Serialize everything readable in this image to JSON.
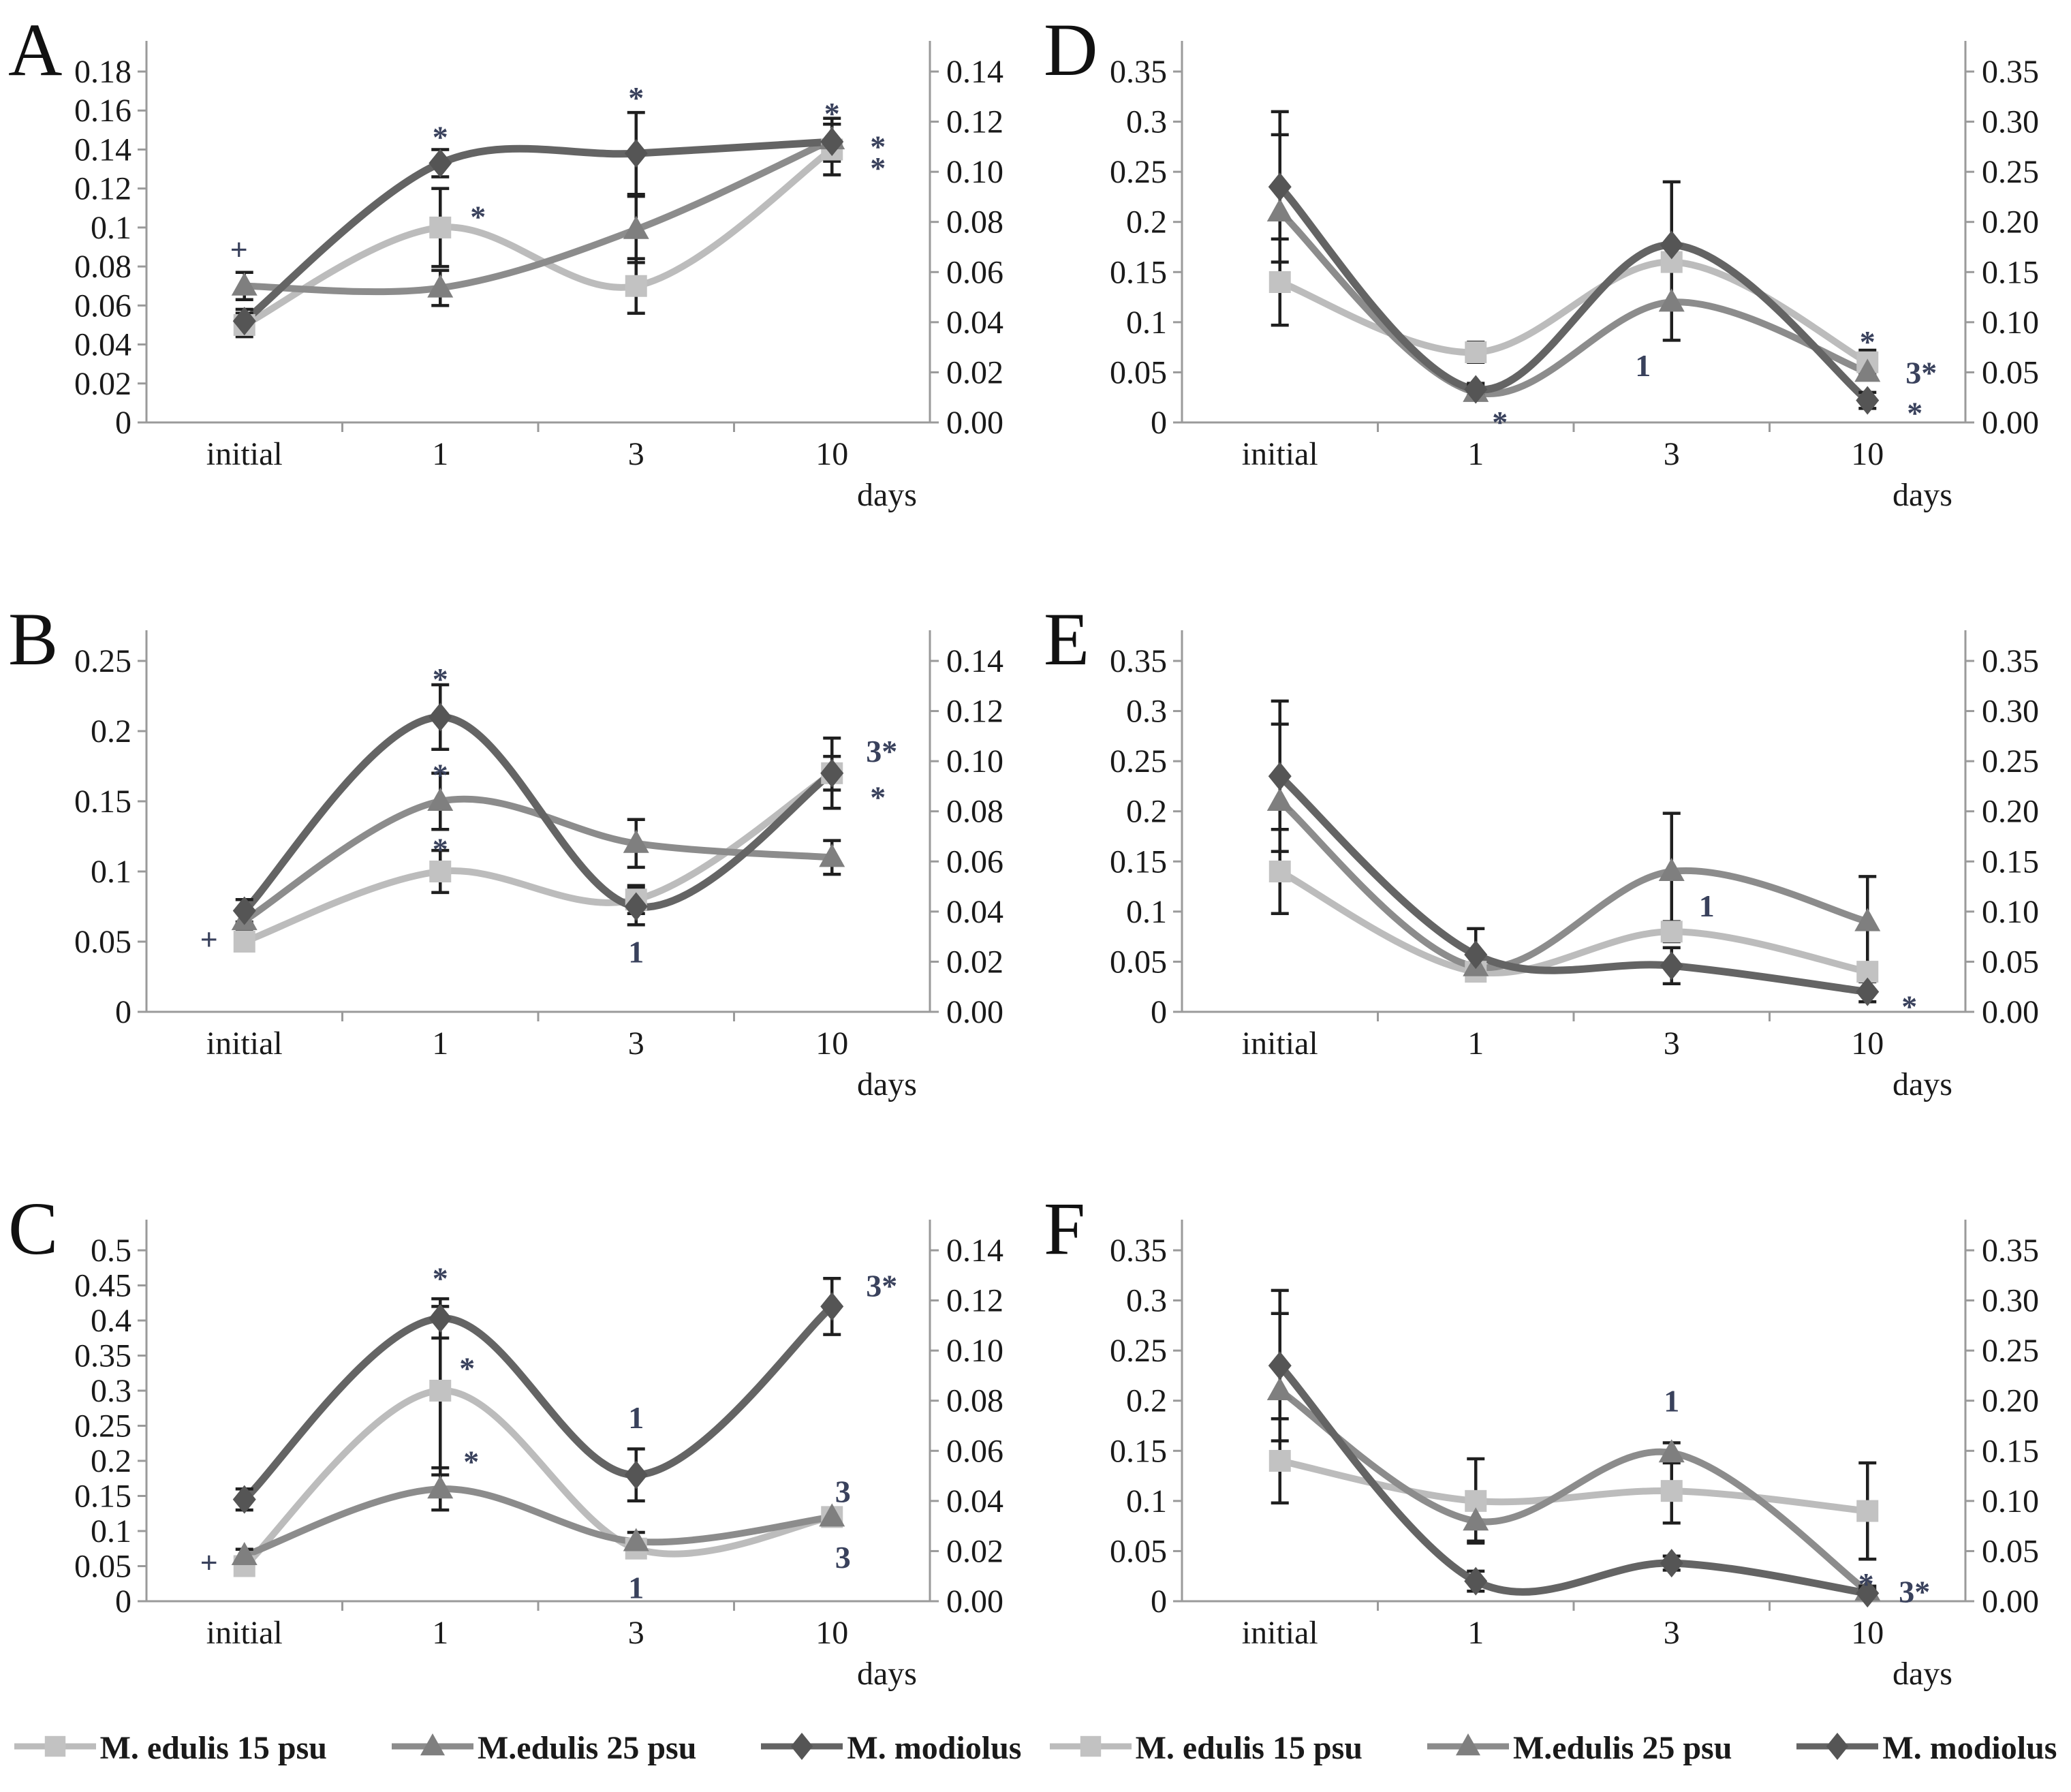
{
  "figure_title": "",
  "x_axis_label": "days",
  "x_categories": [
    "initial",
    "1",
    "3",
    "10"
  ],
  "annotation_color": "#39415c",
  "error_bar_color": "#1f1f1f",
  "axis_line_color": "#9a9a9a",
  "tick_text_color": "#1a1a1a",
  "series_styles": [
    {
      "name": "M. edulis 15 psu",
      "marker": "square",
      "line_color": "#bcbcbc",
      "marker_color": "#c2c2c2"
    },
    {
      "name": "M.edulis 25 psu",
      "marker": "triangle",
      "line_color": "#8c8c8c",
      "marker_color": "#7f7f7f"
    },
    {
      "name": "M. modiolus",
      "marker": "diamond",
      "line_color": "#646464",
      "marker_color": "#555555"
    }
  ],
  "legend": {
    "items": [
      {
        "label": "M. edulis 15 psu"
      },
      {
        "label": "M.edulis 25 psu"
      },
      {
        "label": "M. modiolus"
      }
    ]
  },
  "chart_data": [
    {
      "panel": "A",
      "type": "line",
      "x": [
        "initial",
        "1",
        "3",
        "10"
      ],
      "left_axis": {
        "min": 0,
        "max": 0.18,
        "labels": [
          "0.18",
          "0.16",
          "0.14",
          "0.12",
          "0.1",
          "0.08",
          "0.06",
          "0.04",
          "0.02",
          "0"
        ]
      },
      "right_axis": {
        "min": 0,
        "max": 0.14,
        "labels": [
          "0.14",
          "0.12",
          "0.10",
          "0.08",
          "0.06",
          "0.04",
          "0.02",
          "0.00"
        ]
      },
      "series": [
        {
          "name": "M. edulis 15 psu",
          "values": [
            0.05,
            0.1,
            0.07,
            0.14
          ],
          "errors": [
            0.006,
            0.02,
            0.014,
            0.013
          ]
        },
        {
          "name": "M.edulis 25 psu",
          "values": [
            0.07,
            0.069,
            0.099,
            0.145
          ],
          "errors": [
            0.007,
            0.009,
            0.017,
            0.011
          ]
        },
        {
          "name": "M. modiolus",
          "values": [
            0.052,
            0.133,
            0.138,
            0.144
          ],
          "errors": [
            0.006,
            0.007,
            0.021,
            0.009
          ]
        }
      ],
      "annotations": [
        {
          "xi": 0,
          "y": 0.089,
          "dx": -8,
          "text": "+"
        },
        {
          "xi": 1,
          "y": 0.153,
          "dx": 0,
          "text": "*"
        },
        {
          "xi": 1,
          "y": 0.112,
          "dx": 44,
          "text": "*"
        },
        {
          "xi": 2,
          "y": 0.173,
          "dx": 0,
          "text": "*"
        },
        {
          "xi": 3,
          "y": 0.165,
          "dx": 0,
          "text": "*"
        },
        {
          "xi": 3,
          "y": 0.148,
          "dx": 56,
          "text": "*"
        },
        {
          "xi": 3,
          "y": 0.137,
          "dx": 56,
          "text": "*"
        }
      ]
    },
    {
      "panel": "D",
      "type": "line",
      "x": [
        "initial",
        "1",
        "3",
        "10"
      ],
      "left_axis": {
        "min": 0,
        "max": 0.35,
        "labels": [
          "0.35",
          "0.3",
          "0.25",
          "0.2",
          "0.15",
          "0.1",
          "0.05",
          "0"
        ]
      },
      "right_axis": {
        "min": 0,
        "max": 0.35,
        "labels": [
          "0.35",
          "0.30",
          "0.25",
          "0.20",
          "0.15",
          "0.10",
          "0.05",
          "0.00"
        ]
      },
      "series": [
        {
          "name": "M. edulis 15 psu",
          "values": [
            0.14,
            0.07,
            0.16,
            0.06
          ],
          "errors": [
            0.043,
            0.01,
            0.008,
            0.012
          ]
        },
        {
          "name": "M.edulis 25 psu",
          "values": [
            0.21,
            0.03,
            0.12,
            0.05
          ],
          "errors": [
            0.077,
            0.006,
            0.038,
            0.006
          ]
        },
        {
          "name": "M. modiolus",
          "values": [
            0.235,
            0.033,
            0.177,
            0.022
          ],
          "errors": [
            0.075,
            0.006,
            0.063,
            0.008
          ]
        }
      ],
      "annotations": [
        {
          "xi": 1,
          "y": 0.013,
          "dx": 24,
          "text": "*"
        },
        {
          "xi": 2,
          "y": 0.057,
          "dx": -42,
          "text": "1"
        },
        {
          "xi": 3,
          "y": 0.093,
          "dx": 0,
          "text": "*"
        },
        {
          "xi": 3,
          "y": 0.05,
          "dx": 56,
          "text": "3*"
        },
        {
          "xi": 3,
          "y": 0.022,
          "dx": 58,
          "text": "*"
        }
      ]
    },
    {
      "panel": "B",
      "type": "line",
      "x": [
        "initial",
        "1",
        "3",
        "10"
      ],
      "left_axis": {
        "min": 0,
        "max": 0.25,
        "labels": [
          "0.25",
          "0.2",
          "0.15",
          "0.1",
          "0.05",
          "0"
        ]
      },
      "right_axis": {
        "min": 0,
        "max": 0.14,
        "labels": [
          "0.14",
          "0.12",
          "0.10",
          "0.08",
          "0.06",
          "0.04",
          "0.02",
          "0.00"
        ]
      },
      "series": [
        {
          "name": "M. edulis 15 psu",
          "values": [
            0.05,
            0.1,
            0.08,
            0.17
          ],
          "errors": [
            0.005,
            0.015,
            0.01,
            0.012
          ]
        },
        {
          "name": "M.edulis 25 psu",
          "values": [
            0.065,
            0.15,
            0.12,
            0.11
          ],
          "errors": [
            0.006,
            0.02,
            0.017,
            0.012
          ]
        },
        {
          "name": "M. modiolus",
          "values": [
            0.072,
            0.21,
            0.075,
            0.17
          ],
          "errors": [
            0.008,
            0.023,
            0.013,
            0.025
          ]
        }
      ],
      "annotations": [
        {
          "xi": 0,
          "y": 0.052,
          "dx": -52,
          "text": "+"
        },
        {
          "xi": 1,
          "y": 0.246,
          "dx": 0,
          "text": "*"
        },
        {
          "xi": 1,
          "y": 0.178,
          "dx": 0,
          "text": "*"
        },
        {
          "xi": 1,
          "y": 0.125,
          "dx": 0,
          "text": "*"
        },
        {
          "xi": 2,
          "y": 0.043,
          "dx": 0,
          "text": "1"
        },
        {
          "xi": 3,
          "y": 0.186,
          "dx": 50,
          "text": "3*"
        },
        {
          "xi": 3,
          "y": 0.162,
          "dx": 56,
          "text": "*"
        }
      ]
    },
    {
      "panel": "E",
      "type": "line",
      "x": [
        "initial",
        "1",
        "3",
        "10"
      ],
      "left_axis": {
        "min": 0,
        "max": 0.35,
        "labels": [
          "0.35",
          "0.3",
          "0.25",
          "0.2",
          "0.15",
          "0.1",
          "0.05",
          "0"
        ]
      },
      "right_axis": {
        "min": 0,
        "max": 0.35,
        "labels": [
          "0.35",
          "0.30",
          "0.25",
          "0.20",
          "0.15",
          "0.10",
          "0.05",
          "0.00"
        ]
      },
      "series": [
        {
          "name": "M. edulis 15 psu",
          "values": [
            0.14,
            0.04,
            0.08,
            0.04
          ],
          "errors": [
            0.042,
            0.008,
            0.01,
            0.008
          ]
        },
        {
          "name": "M.edulis 25 psu",
          "values": [
            0.21,
            0.045,
            0.14,
            0.09
          ],
          "errors": [
            0.077,
            0.012,
            0.058,
            0.045
          ]
        },
        {
          "name": "M. modiolus",
          "values": [
            0.235,
            0.057,
            0.046,
            0.02
          ],
          "errors": [
            0.075,
            0.026,
            0.018,
            0.01
          ]
        }
      ],
      "annotations": [
        {
          "xi": 2,
          "y": 0.106,
          "dx": 40,
          "text": "1"
        },
        {
          "xi": 3,
          "y": 0.018,
          "dx": 50,
          "text": "*"
        }
      ]
    },
    {
      "panel": "C",
      "type": "line",
      "x": [
        "initial",
        "1",
        "3",
        "10"
      ],
      "left_axis": {
        "min": 0,
        "max": 0.5,
        "labels": [
          "0.5",
          "0.45",
          "0.4",
          "0.35",
          "0.3",
          "0.25",
          "0.2",
          "0.15",
          "0.1",
          "0.05",
          "0"
        ]
      },
      "right_axis": {
        "min": 0,
        "max": 0.14,
        "labels": [
          "0.14",
          "0.12",
          "0.10",
          "0.08",
          "0.06",
          "0.04",
          "0.02",
          "0.00"
        ]
      },
      "series": [
        {
          "name": "M. edulis 15 psu",
          "values": [
            0.05,
            0.3,
            0.075,
            0.12
          ],
          "errors": [
            0.006,
            0.12,
            0.01,
            0.008
          ]
        },
        {
          "name": "M.edulis 25 psu",
          "values": [
            0.065,
            0.16,
            0.085,
            0.12
          ],
          "errors": [
            0.009,
            0.03,
            0.013,
            0.008
          ]
        },
        {
          "name": "M. modiolus",
          "values": [
            0.145,
            0.403,
            0.18,
            0.42
          ],
          "errors": [
            0.015,
            0.028,
            0.037,
            0.04
          ]
        }
      ],
      "annotations": [
        {
          "xi": 0,
          "y": 0.056,
          "dx": -52,
          "text": "+"
        },
        {
          "xi": 1,
          "y": 0.478,
          "dx": 0,
          "text": "*"
        },
        {
          "xi": 1,
          "y": 0.35,
          "dx": 28,
          "text": "*"
        },
        {
          "xi": 1,
          "y": 0.217,
          "dx": 34,
          "text": "*"
        },
        {
          "xi": 2,
          "y": 0.262,
          "dx": 0,
          "text": "1"
        },
        {
          "xi": 2,
          "y": 0.02,
          "dx": 0,
          "text": "1"
        },
        {
          "xi": 3,
          "y": 0.45,
          "dx": 50,
          "text": "3*"
        },
        {
          "xi": 3,
          "y": 0.157,
          "dx": 16,
          "text": "3"
        },
        {
          "xi": 3,
          "y": 0.063,
          "dx": 16,
          "text": "3"
        }
      ]
    },
    {
      "panel": "F",
      "type": "line",
      "x": [
        "initial",
        "1",
        "3",
        "10"
      ],
      "left_axis": {
        "min": 0,
        "max": 0.35,
        "labels": [
          "0.35",
          "0.3",
          "0.25",
          "0.2",
          "0.15",
          "0.1",
          "0.05",
          "0"
        ]
      },
      "right_axis": {
        "min": 0,
        "max": 0.35,
        "labels": [
          "0.35",
          "0.30",
          "0.25",
          "0.20",
          "0.15",
          "0.10",
          "0.05",
          "0.00"
        ]
      },
      "series": [
        {
          "name": "M. edulis 15 psu",
          "values": [
            0.14,
            0.1,
            0.11,
            0.09
          ],
          "errors": [
            0.042,
            0.042,
            0.032,
            0.048
          ]
        },
        {
          "name": "M.edulis 25 psu",
          "values": [
            0.21,
            0.08,
            0.148,
            0.01
          ],
          "errors": [
            0.077,
            0.02,
            0.01,
            0.005
          ]
        },
        {
          "name": "M. modiolus",
          "values": [
            0.235,
            0.02,
            0.038,
            0.008
          ],
          "errors": [
            0.075,
            0.01,
            0.007,
            0.004
          ]
        }
      ],
      "annotations": [
        {
          "xi": 2,
          "y": 0.2,
          "dx": 0,
          "text": "1"
        },
        {
          "xi": 3,
          "y": 0.03,
          "dx": -2,
          "text": "*"
        },
        {
          "xi": 3,
          "y": 0.01,
          "dx": 46,
          "text": "3*"
        }
      ]
    }
  ]
}
